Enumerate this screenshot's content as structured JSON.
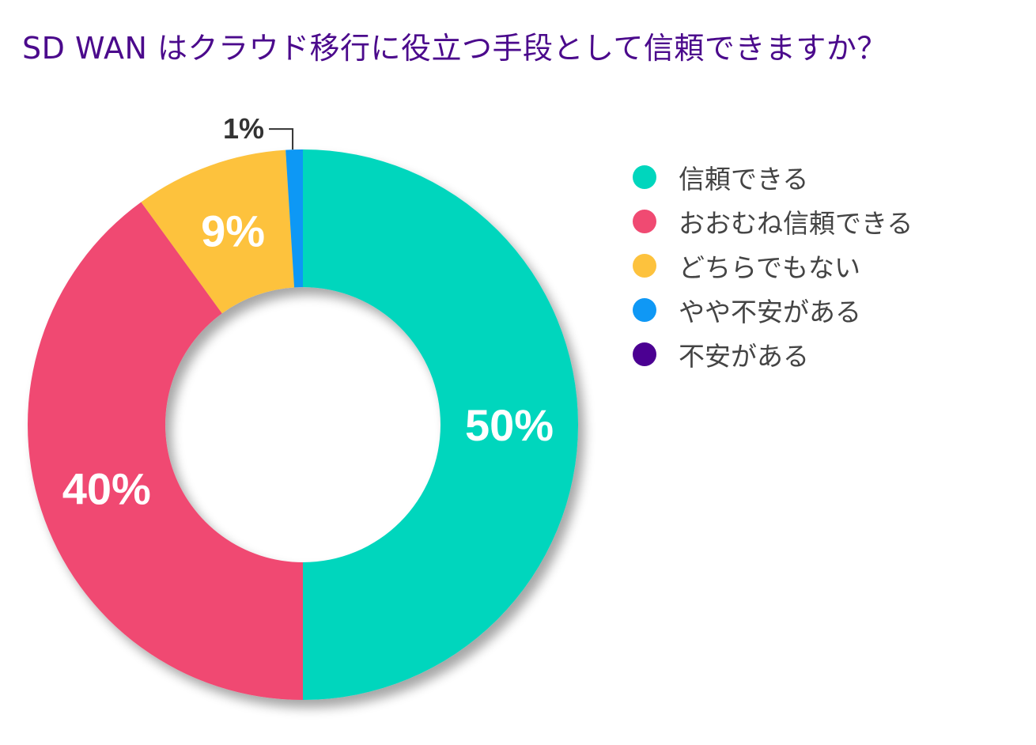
{
  "chart_data": {
    "type": "pie",
    "title": "SD WAN はクラウド移行に役立つ手段として信頼できますか？",
    "categories": [
      "信頼できる",
      "おおむね信頼できる",
      "どちらでもない",
      "やや不安がある",
      "不安がある"
    ],
    "values": [
      50,
      40,
      9,
      1,
      0
    ],
    "value_labels": [
      "50%",
      "40%",
      "9%",
      "1%",
      ""
    ],
    "colors": [
      "#00d6bd",
      "#f04a72",
      "#fdc23d",
      "#0f98f5",
      "#4b0092"
    ],
    "unit": "%",
    "donut": true,
    "legend_position": "right"
  }
}
